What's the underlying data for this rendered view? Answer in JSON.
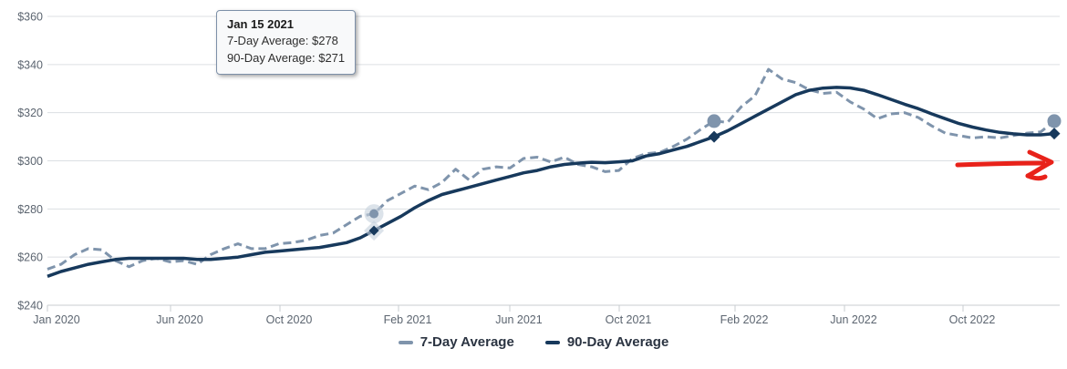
{
  "tooltip": {
    "title": "Jan 15 2021",
    "line_7day": "7-Day Average: $278",
    "line_90day": "90-Day Average: $271"
  },
  "legend": {
    "items": [
      {
        "label": "7-Day Average",
        "color": "#7f94ac"
      },
      {
        "label": "90-Day Average",
        "color": "#17395c"
      }
    ]
  },
  "colors": {
    "grid": "#dcdfe3",
    "axis_line": "#c9ccd1",
    "axis_text": "#5c6570",
    "halo": "#c5d0dc",
    "arrow": "#e8221a",
    "tooltip_border": "#7d90a8"
  },
  "chart_data": {
    "type": "line",
    "title": "",
    "xlabel": "",
    "ylabel": "",
    "x_unit": "half-month steps from Jan 2020 to mid-Dec 2022",
    "x_axis": {
      "tick_labels": [
        "Jan 2020",
        "Jun 2020",
        "Oct 2020",
        "Feb 2021",
        "Jun 2021",
        "Oct 2021",
        "Feb 2022",
        "Jun 2022",
        "Oct 2022"
      ]
    },
    "y_axis": {
      "tick_labels": [
        "$240",
        "$260",
        "$280",
        "$300",
        "$320",
        "$340",
        "$360"
      ],
      "min": 240,
      "max": 360,
      "step": 20
    },
    "grid": "horizontal-only",
    "legend_position": "bottom-center",
    "series": [
      {
        "name": "7-Day Average",
        "style": "dashed",
        "color": "#7f94ac",
        "values": [
          255,
          257,
          261,
          263.5,
          263,
          258.5,
          256,
          258.5,
          259.5,
          258,
          258.5,
          257,
          261,
          263.5,
          265.5,
          263.5,
          263.5,
          265.5,
          266,
          267,
          269,
          270,
          273.5,
          277,
          278,
          283.5,
          286.5,
          289.5,
          288,
          291,
          296.5,
          292,
          296.5,
          297.5,
          297,
          301,
          301.5,
          299.5,
          301.5,
          298.5,
          297.5,
          295.5,
          296,
          301,
          303,
          303.5,
          306,
          309,
          313,
          316.5,
          316,
          322.5,
          327,
          338,
          334,
          332.5,
          329.5,
          328,
          328.5,
          324.5,
          321.5,
          317.5,
          319.5,
          320,
          318,
          314.5,
          311.5,
          310.5,
          309.5,
          310,
          309.5,
          310.5,
          311.5,
          312,
          316.5
        ]
      },
      {
        "name": "90-Day Average",
        "style": "solid",
        "color": "#17395c",
        "values": [
          252,
          254,
          255.5,
          257,
          258,
          259,
          259.5,
          259.5,
          259.5,
          259.5,
          259.5,
          259,
          259,
          259.5,
          260,
          261,
          262,
          262.5,
          263,
          263.5,
          264,
          265,
          266,
          268,
          271,
          274,
          277,
          280.5,
          283.5,
          286,
          287.5,
          289,
          290.5,
          292,
          293.5,
          295,
          296,
          297.5,
          298.5,
          299,
          299.4,
          299.2,
          299.6,
          300,
          302,
          303,
          304.5,
          306,
          308,
          310,
          312.5,
          315.5,
          318.5,
          321.5,
          324.5,
          327.5,
          329.3,
          330.2,
          330.5,
          330.3,
          329.3,
          327.5,
          325.5,
          323.5,
          321.7,
          319.5,
          317.5,
          315.5,
          314,
          312.8,
          311.8,
          311.2,
          310.8,
          310.8,
          311.3
        ]
      }
    ],
    "highlighted_points": [
      {
        "series": 0,
        "index": 24,
        "value": 278,
        "marker": "circle",
        "halo": true
      },
      {
        "series": 1,
        "index": 24,
        "value": 271,
        "marker": "diamond",
        "halo": true
      },
      {
        "series": 0,
        "index": 49,
        "value": 316.5,
        "marker": "circle",
        "halo": false
      },
      {
        "series": 1,
        "index": 49,
        "value": 310,
        "marker": "diamond",
        "halo": false
      },
      {
        "series": 0,
        "index": 74,
        "value": 316.5,
        "marker": "circle",
        "halo": false
      },
      {
        "series": 1,
        "index": 74,
        "value": 311.3,
        "marker": "diamond",
        "halo": false
      }
    ],
    "annotations": [
      {
        "type": "arrow",
        "color": "#e8221a",
        "description": "hand-drawn red arrow pointing right toward the latest values"
      }
    ]
  }
}
